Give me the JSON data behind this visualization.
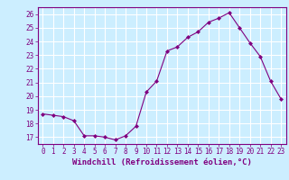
{
  "x": [
    0,
    1,
    2,
    3,
    4,
    5,
    6,
    7,
    8,
    9,
    10,
    11,
    12,
    13,
    14,
    15,
    16,
    17,
    18,
    19,
    20,
    21,
    22,
    23
  ],
  "y": [
    18.7,
    18.6,
    18.5,
    18.2,
    17.1,
    17.1,
    17.0,
    16.8,
    17.1,
    17.8,
    20.3,
    21.1,
    23.3,
    23.6,
    24.3,
    24.7,
    25.4,
    25.7,
    26.1,
    25.0,
    23.9,
    22.9,
    21.1,
    19.8
  ],
  "line_color": "#800080",
  "marker": "D",
  "marker_size": 2,
  "bg_color": "#cceeff",
  "grid_color": "#ffffff",
  "axis_color": "#800080",
  "xlabel": "Windchill (Refroidissement éolien,°C)",
  "ylabel": "",
  "xlim": [
    -0.5,
    23.5
  ],
  "ylim": [
    16.5,
    26.5
  ],
  "yticks": [
    17,
    18,
    19,
    20,
    21,
    22,
    23,
    24,
    25,
    26
  ],
  "xticks": [
    0,
    1,
    2,
    3,
    4,
    5,
    6,
    7,
    8,
    9,
    10,
    11,
    12,
    13,
    14,
    15,
    16,
    17,
    18,
    19,
    20,
    21,
    22,
    23
  ],
  "tick_fontsize": 5.5,
  "xlabel_fontsize": 6.5
}
